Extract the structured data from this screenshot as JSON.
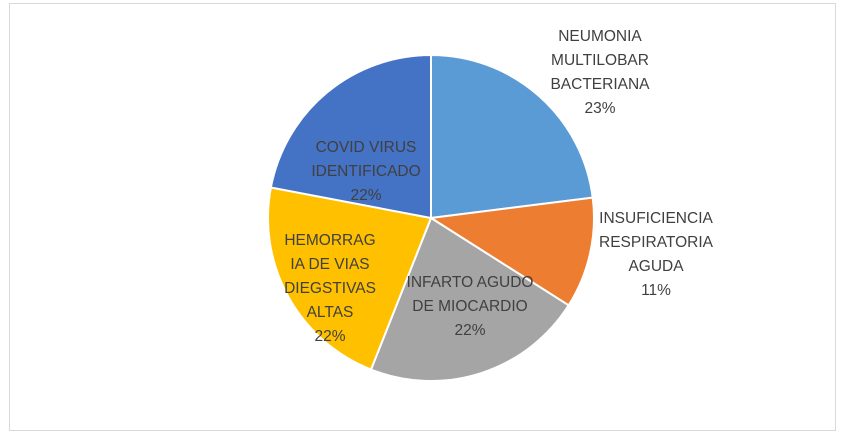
{
  "chart_data": {
    "type": "pie",
    "categories": [
      "NEUMONIA MULTILOBAR BACTERIANA",
      "INSUFICIENCIA RESPIRATORIA AGUDA",
      "INFARTO AGUDO DE MIOCARDIO",
      "HEMORRAGIA DE VIAS DIEGSTIVAS ALTAS",
      "COVID VIRUS IDENTIFICADO"
    ],
    "values": [
      23,
      11,
      22,
      22,
      22
    ],
    "value_labels": [
      "23%",
      "11%",
      "22%",
      "22%",
      "22%"
    ],
    "colors": [
      "#5b9bd5",
      "#ed7d31",
      "#a5a5a5",
      "#ffc000",
      "#4472c4"
    ]
  }
}
